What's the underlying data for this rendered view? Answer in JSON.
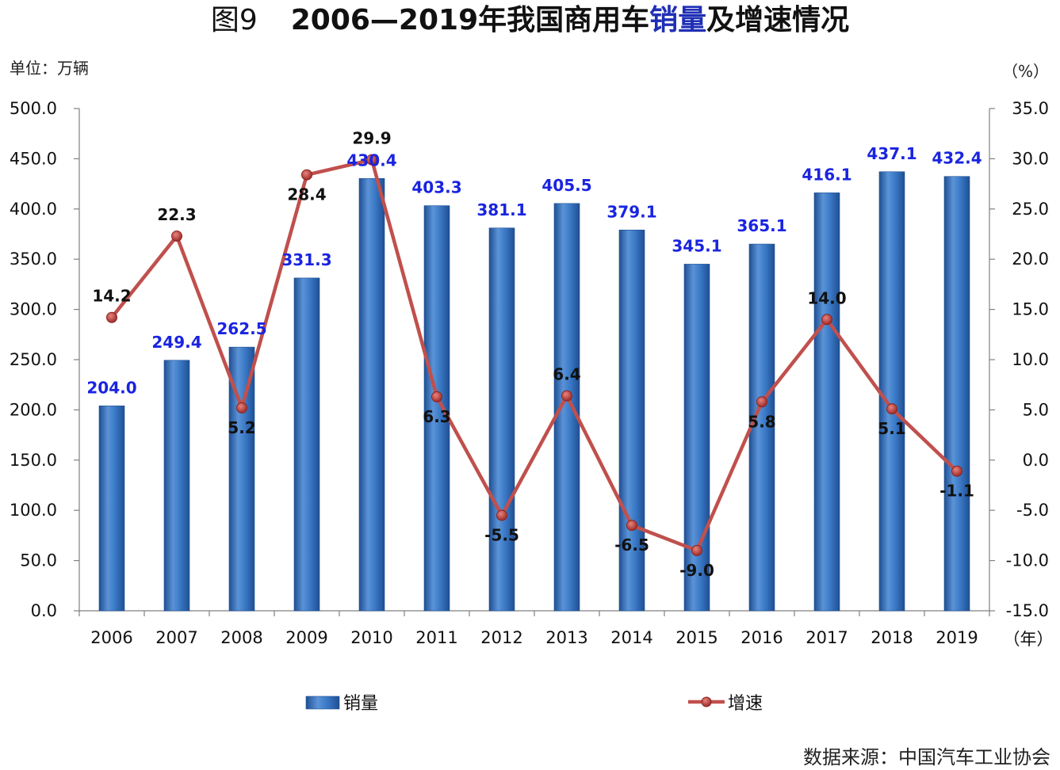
{
  "header": {
    "fig_label": "图9",
    "title_part1": "2006—2019年我国商用车",
    "title_accent": "销量",
    "title_part2": "及增速情况"
  },
  "unit_left": "单位：万辆",
  "unit_right": "（%）",
  "source": "数据来源：中国汽车工业协会",
  "colors": {
    "bar": "#3d7cc9",
    "bar_dark": "#1f4f93",
    "line": "#c0504d",
    "bar_label": "#1a24e0",
    "axis": "#808080"
  },
  "chart_data": {
    "type": "bar",
    "categories": [
      "2006",
      "2007",
      "2008",
      "2009",
      "2010",
      "2011",
      "2012",
      "2013",
      "2014",
      "2015",
      "2016",
      "2017",
      "2018",
      "2019"
    ],
    "x_unit_label": "（年）",
    "series": [
      {
        "name": "销量",
        "type": "bar",
        "axis": "left",
        "values": [
          204.0,
          249.4,
          262.5,
          331.3,
          430.4,
          403.3,
          381.1,
          405.5,
          379.1,
          345.1,
          365.1,
          416.1,
          437.1,
          432.4
        ],
        "labels": [
          "204.0",
          "249.4",
          "262.5",
          "331.3",
          "430.4",
          "403.3",
          "381.1",
          "405.5",
          "379.1",
          "345.1",
          "365.1",
          "416.1",
          "437.1",
          "432.4"
        ]
      },
      {
        "name": "增速",
        "type": "line",
        "axis": "right",
        "values": [
          14.2,
          22.3,
          5.2,
          28.4,
          29.9,
          6.3,
          -5.5,
          6.4,
          -6.5,
          -9.0,
          5.8,
          14.0,
          5.1,
          -1.1
        ],
        "labels": [
          "14.2",
          "22.3",
          "5.2",
          "28.4",
          "29.9",
          "6.3",
          "-5.5",
          "6.4",
          "-6.5",
          "-9.0",
          "5.8",
          "14.0",
          "5.1",
          "-1.1"
        ]
      }
    ],
    "y_left": {
      "min": 0,
      "max": 500,
      "ticks": [
        "0.0",
        "50.0",
        "100.0",
        "150.0",
        "200.0",
        "250.0",
        "300.0",
        "350.0",
        "400.0",
        "450.0",
        "500.0"
      ]
    },
    "y_right": {
      "min": -15,
      "max": 35,
      "ticks": [
        "-15.0",
        "-10.0",
        "-5.0",
        "0.0",
        "5.0",
        "10.0",
        "15.0",
        "20.0",
        "25.0",
        "30.0",
        "35.0"
      ]
    },
    "legend_position": "bottom",
    "grid": false
  }
}
